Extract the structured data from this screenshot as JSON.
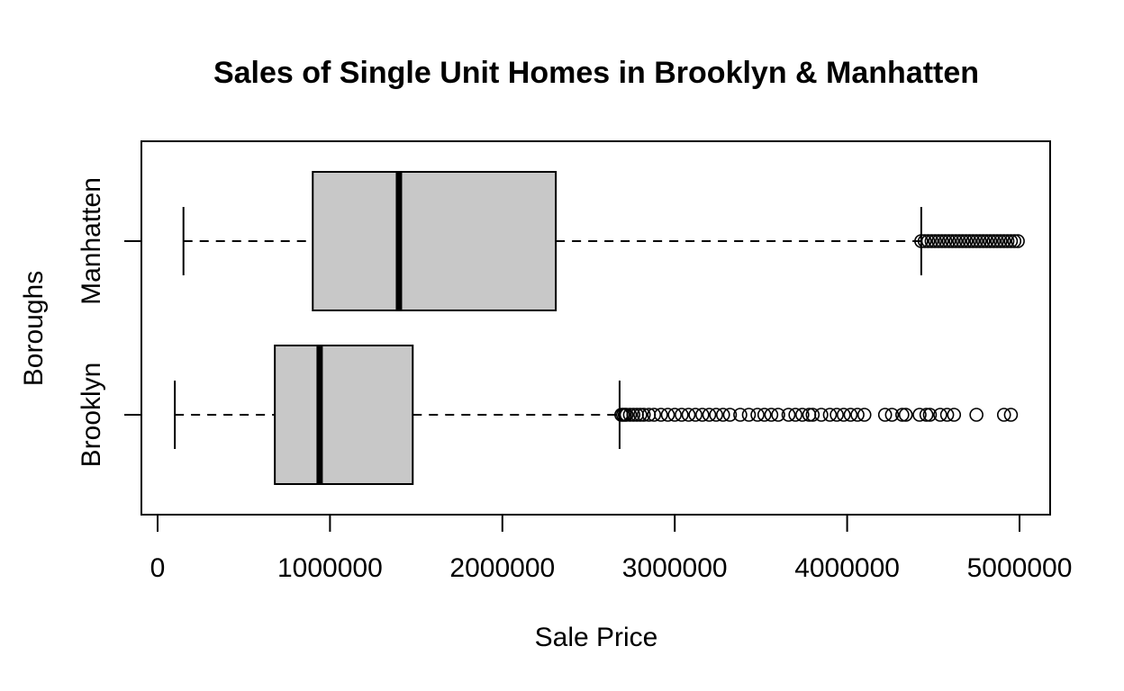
{
  "chart_data": {
    "type": "boxplot",
    "orientation": "horizontal",
    "title": "Sales of Single Unit Homes in Brooklyn & Manhatten",
    "xlabel": "Sale Price",
    "ylabel": "Boroughs",
    "xlim": [
      -100000,
      5100000
    ],
    "xticks": [
      0,
      1000000,
      2000000,
      3000000,
      4000000,
      5000000
    ],
    "xtick_labels": [
      "0",
      "1000000",
      "2000000",
      "3000000",
      "4000000",
      "5000000"
    ],
    "grid": false,
    "box_fill": "#c8c8c8",
    "line_color": "#000000",
    "series": [
      {
        "name": "Brooklyn",
        "whisker_low": 100000,
        "q1": 680000,
        "median": 940000,
        "q3": 1480000,
        "whisker_high": 2680000,
        "outliers": [
          2690000,
          2700000,
          2710000,
          2720000,
          2740000,
          2760000,
          2780000,
          2800000,
          2820000,
          2850000,
          2880000,
          2920000,
          2960000,
          3000000,
          3040000,
          3080000,
          3120000,
          3160000,
          3200000,
          3240000,
          3280000,
          3320000,
          3380000,
          3430000,
          3480000,
          3520000,
          3560000,
          3600000,
          3660000,
          3700000,
          3740000,
          3780000,
          3800000,
          3850000,
          3900000,
          3940000,
          3980000,
          4020000,
          4060000,
          4100000,
          4220000,
          4260000,
          4320000,
          4340000,
          4420000,
          4460000,
          4480000,
          4540000,
          4580000,
          4620000,
          4750000,
          4910000,
          4950000
        ]
      },
      {
        "name": "Manhatten",
        "whisker_low": 150000,
        "q1": 900000,
        "median": 1400000,
        "q3": 2310000,
        "whisker_high": 4430000,
        "outliers": [
          4430000,
          4450000,
          4470000,
          4490000,
          4510000,
          4530000,
          4550000,
          4570000,
          4590000,
          4610000,
          4630000,
          4650000,
          4670000,
          4690000,
          4710000,
          4730000,
          4750000,
          4770000,
          4790000,
          4810000,
          4830000,
          4850000,
          4870000,
          4890000,
          4910000,
          4930000,
          4950000,
          4970000,
          4990000
        ]
      }
    ]
  }
}
